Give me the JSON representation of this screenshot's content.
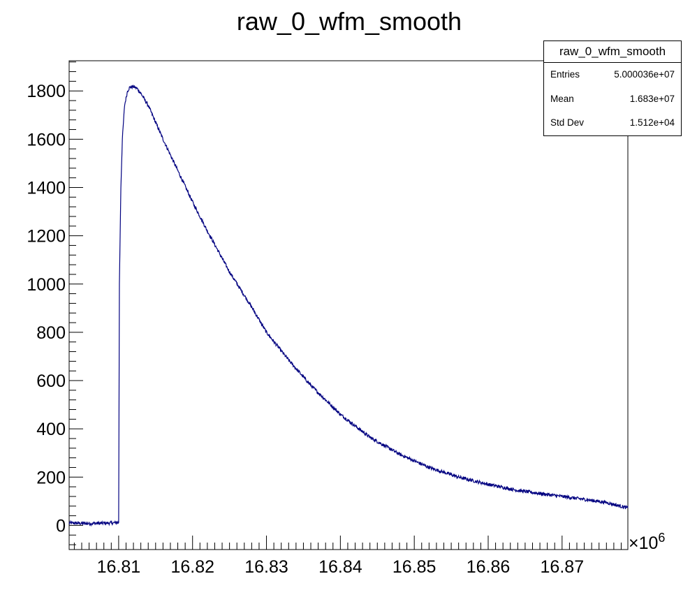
{
  "chart_data": {
    "type": "line",
    "title": "raw_0_wfm_smooth",
    "xlabel": "",
    "ylabel": "",
    "x_exponent_label": "×10",
    "x_exponent_power": "6",
    "xlim": [
      16.8033,
      16.8789
    ],
    "ylim": [
      -100,
      1925
    ],
    "x_ticks": [
      16.81,
      16.82,
      16.83,
      16.84,
      16.85,
      16.86,
      16.87
    ],
    "x_tick_labels": [
      "16.81",
      "16.82",
      "16.83",
      "16.84",
      "16.85",
      "16.86",
      "16.87"
    ],
    "y_ticks": [
      0,
      200,
      400,
      600,
      800,
      1000,
      1200,
      1400,
      1600,
      1800
    ],
    "y_tick_labels": [
      "0",
      "200",
      "400",
      "600",
      "800",
      "1000",
      "1200",
      "1400",
      "1600",
      "1800"
    ],
    "series": [
      {
        "color": "#000080",
        "x": [
          16.8033,
          16.806,
          16.809,
          16.81,
          16.8101,
          16.8103,
          16.8105,
          16.8108,
          16.8112,
          16.8115,
          16.812,
          16.8125,
          16.813,
          16.814,
          16.815,
          16.816,
          16.818,
          16.82,
          16.822,
          16.825,
          16.828,
          16.83,
          16.833,
          16.836,
          16.84,
          16.844,
          16.848,
          16.852,
          16.856,
          16.86,
          16.864,
          16.868,
          16.872,
          16.876,
          16.8789
        ],
        "y": [
          10,
          8,
          10,
          12,
          1000,
          1400,
          1600,
          1740,
          1800,
          1815,
          1818,
          1810,
          1790,
          1740,
          1670,
          1600,
          1470,
          1340,
          1220,
          1050,
          905,
          800,
          685,
          580,
          460,
          365,
          295,
          240,
          200,
          170,
          145,
          128,
          112,
          95,
          72
        ]
      }
    ]
  },
  "stats": {
    "title": "raw_0_wfm_smooth",
    "rows": [
      {
        "label": "Entries",
        "value": "5.000036e+07"
      },
      {
        "label": "Mean",
        "value": "1.683e+07"
      },
      {
        "label": "Std Dev",
        "value": "1.512e+04"
      }
    ]
  }
}
